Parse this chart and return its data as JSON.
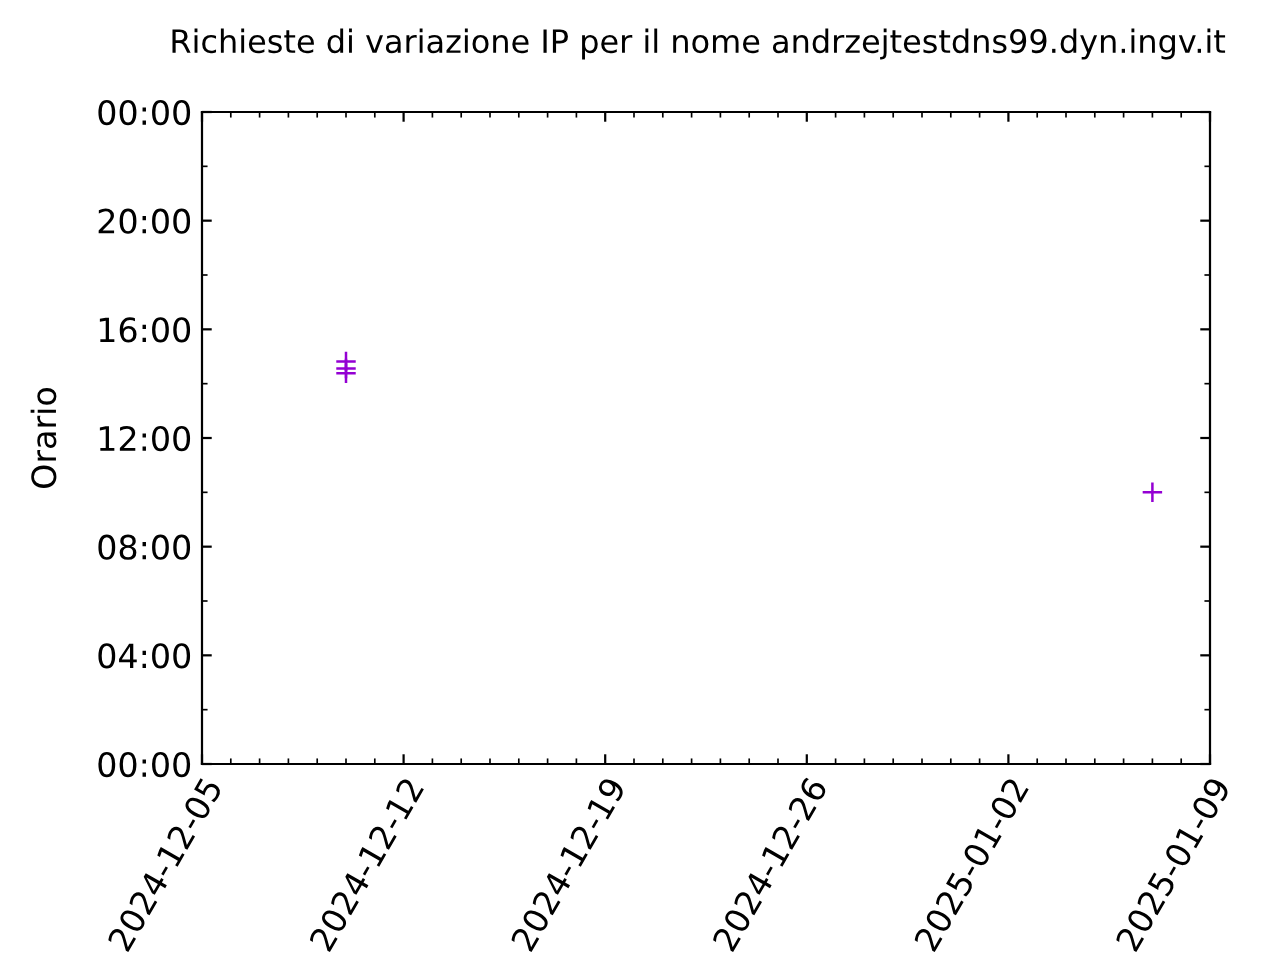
{
  "chart_data": {
    "type": "scatter",
    "title": "Richieste di variazione IP per il nome andrzejtestdns99.dyn.ingv.it",
    "ylabel": "Orario",
    "x": [
      "2024-12-10",
      "2024-12-10",
      "2024-12-10",
      "2025-01-07"
    ],
    "values": [
      14.82,
      14.56,
      14.38,
      10.0
    ],
    "color": "#9400d3",
    "marker": "cross",
    "xlim": [
      "2024-12-05",
      "2025-01-09"
    ],
    "xticks": [
      "2024-12-05",
      "2024-12-12",
      "2024-12-19",
      "2024-12-26",
      "2025-01-02",
      "2025-01-09"
    ],
    "ylim": [
      0,
      24
    ],
    "yticks": [
      {
        "value": 0,
        "label": "00:00"
      },
      {
        "value": 4,
        "label": "04:00"
      },
      {
        "value": 8,
        "label": "08:00"
      },
      {
        "value": 12,
        "label": "12:00"
      },
      {
        "value": 16,
        "label": "16:00"
      },
      {
        "value": 20,
        "label": "20:00"
      },
      {
        "value": 24,
        "label": "00:00"
      }
    ],
    "grid": false,
    "legend": false
  }
}
